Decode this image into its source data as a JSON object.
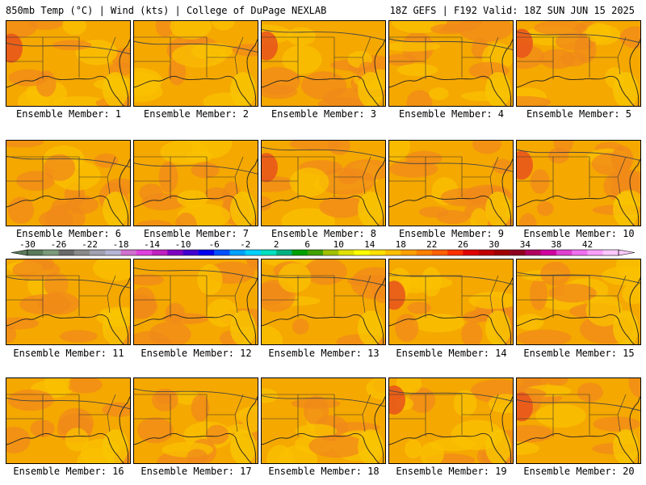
{
  "header": {
    "left": "850mb Temp (°C) | Wind (kts) | College of DuPage NEXLAB",
    "right": "18Z GEFS | F192 Valid: 18Z SUN JUN 15 2025"
  },
  "caption_prefix": "Ensemble Member: ",
  "members": [
    {
      "id": "1",
      "label": "Ensemble Member: 1"
    },
    {
      "id": "2",
      "label": "Ensemble Member: 2"
    },
    {
      "id": "3",
      "label": "Ensemble Member: 3"
    },
    {
      "id": "4",
      "label": "Ensemble Member: 4"
    },
    {
      "id": "5",
      "label": "Ensemble Member: 5"
    },
    {
      "id": "6",
      "label": "Ensemble Member: 6"
    },
    {
      "id": "7",
      "label": "Ensemble Member: 7"
    },
    {
      "id": "8",
      "label": "Ensemble Member: 8"
    },
    {
      "id": "9",
      "label": "Ensemble Member: 9"
    },
    {
      "id": "10",
      "label": "Ensemble Member: 10"
    },
    {
      "id": "11",
      "label": "Ensemble Member: 11"
    },
    {
      "id": "12",
      "label": "Ensemble Member: 12"
    },
    {
      "id": "13",
      "label": "Ensemble Member: 13"
    },
    {
      "id": "14",
      "label": "Ensemble Member: 14"
    },
    {
      "id": "15",
      "label": "Ensemble Member: 15"
    },
    {
      "id": "16",
      "label": "Ensemble Member: 16"
    },
    {
      "id": "17",
      "label": "Ensemble Member: 17"
    },
    {
      "id": "18",
      "label": "Ensemble Member: 18"
    },
    {
      "id": "19",
      "label": "Ensemble Member: 19"
    },
    {
      "id": "20",
      "label": "Ensemble Member: 20"
    }
  ],
  "colorbar": {
    "tick_labels": [
      "-30",
      "-26",
      "-22",
      "-18",
      "-14",
      "-10",
      "-6",
      "-2",
      "2",
      "6",
      "10",
      "14",
      "18",
      "22",
      "26",
      "30",
      "34",
      "38",
      "42"
    ],
    "colors": [
      "#5a7a5a",
      "#7a9a7a",
      "#6a6a6a",
      "#8a8a8a",
      "#a0a0b0",
      "#b4b4d4",
      "#d070d0",
      "#e040e0",
      "#c020c0",
      "#8000c0",
      "#4000d0",
      "#0000f0",
      "#0050ff",
      "#00a0ff",
      "#00d0ff",
      "#00e0c0",
      "#00b080",
      "#00a000",
      "#40a000",
      "#a0c000",
      "#e0e000",
      "#ffff00",
      "#ffe000",
      "#ffc000",
      "#ffa000",
      "#ff8000",
      "#ff6000",
      "#ff3000",
      "#e00000",
      "#c00000",
      "#a00000",
      "#900020",
      "#b00060",
      "#d000a0",
      "#e040d0",
      "#f070f0",
      "#ffa0ff",
      "#ffc8ff"
    ]
  }
}
